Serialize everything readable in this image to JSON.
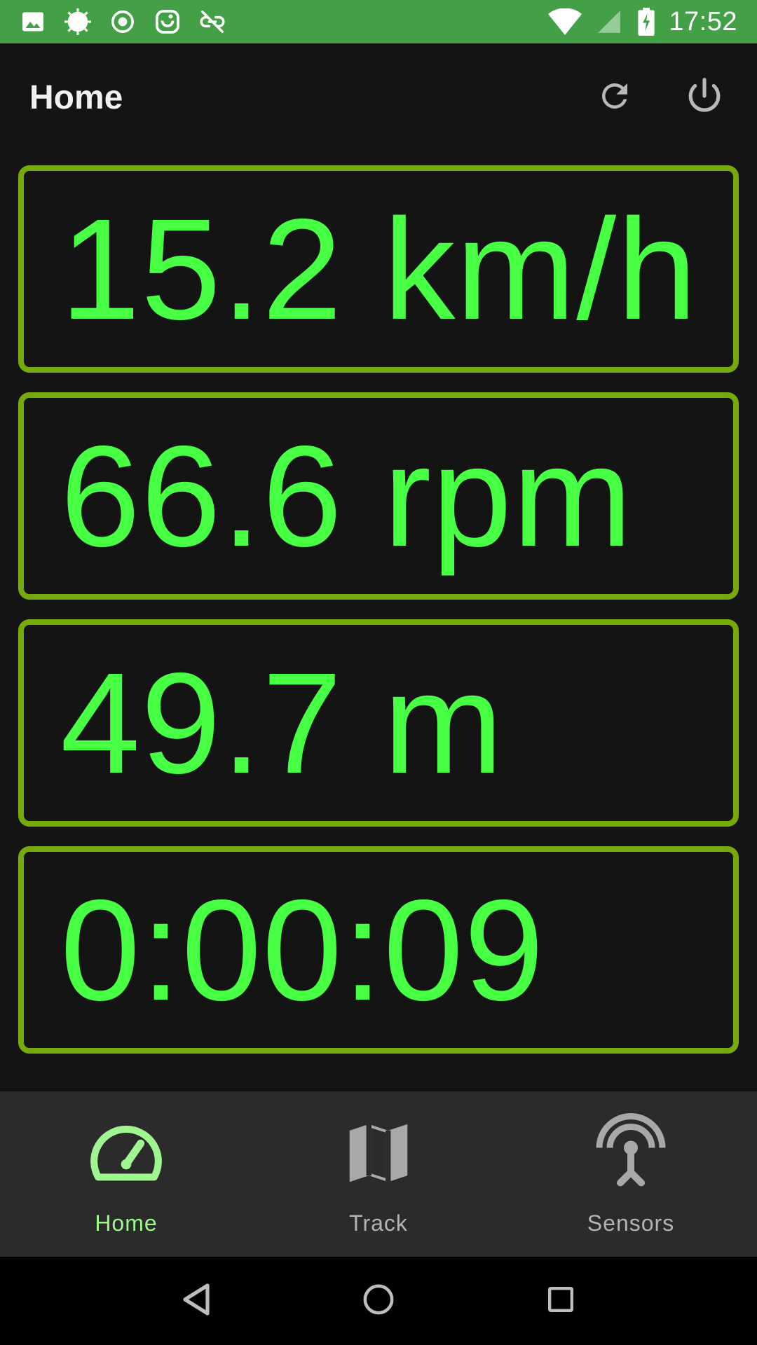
{
  "status_bar": {
    "time": "17:52",
    "icons": [
      "image-icon",
      "sun-icon",
      "record-icon",
      "app-badge-icon",
      "link-off-icon",
      "wifi-icon",
      "signal-icon",
      "battery-charging-icon"
    ]
  },
  "app_bar": {
    "title": "Home",
    "actions": [
      "refresh-icon",
      "power-icon"
    ]
  },
  "metrics": [
    {
      "value": "15.2 km/h"
    },
    {
      "value": "66.6 rpm"
    },
    {
      "value": "49.7 m"
    },
    {
      "value": "0:00:09"
    }
  ],
  "bottom_nav": {
    "items": [
      {
        "label": "Home",
        "icon": "speedometer-icon",
        "active": true
      },
      {
        "label": "Track",
        "icon": "map-icon",
        "active": false
      },
      {
        "label": "Sensors",
        "icon": "antenna-icon",
        "active": false
      }
    ]
  },
  "colors": {
    "status_bar": "#43a047",
    "background": "#141414",
    "card_border": "#76a90c",
    "metric_text": "#47ff43",
    "nav_active": "#9ff58f",
    "nav_inactive": "#b3b3b3"
  }
}
